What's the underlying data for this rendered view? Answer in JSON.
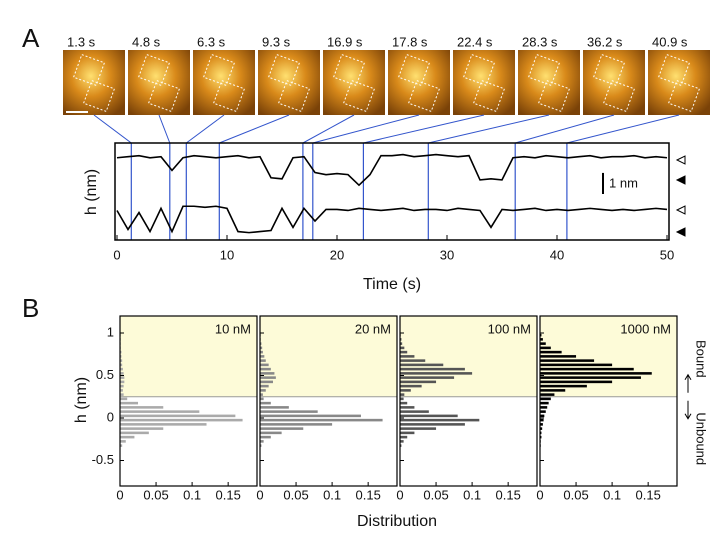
{
  "panels": [
    "A",
    "B"
  ],
  "chart_data": [
    {
      "type": "line",
      "ylabel": "h (nm)",
      "xlabel": "Time (s)",
      "x": [
        0,
        1,
        2,
        3,
        4,
        5,
        6,
        7,
        8,
        9,
        10,
        11,
        12,
        13,
        14,
        15,
        16,
        17,
        18,
        19,
        20,
        21,
        22,
        23,
        24,
        25,
        26,
        27,
        28,
        29,
        30,
        31,
        32,
        33,
        34,
        35,
        36,
        37,
        38,
        39,
        40,
        41,
        42,
        43,
        44,
        45,
        46,
        47,
        48,
        49,
        50
      ],
      "series": [
        {
          "color": "#000000",
          "values": [
            3.9,
            3.95,
            4.0,
            3.9,
            3.95,
            3.3,
            3.9,
            4.0,
            3.95,
            3.9,
            3.95,
            4.0,
            3.9,
            3.95,
            2.95,
            2.9,
            3.9,
            3.95,
            3.2,
            3.1,
            3.15,
            3.1,
            2.6,
            3.1,
            4.0,
            4.0,
            4.05,
            3.95,
            4.0,
            4.05,
            4.0,
            3.95,
            4.0,
            2.85,
            2.9,
            2.85,
            3.9,
            3.95,
            3.9,
            4.0,
            3.95,
            3.9,
            3.95,
            4.0,
            3.9,
            3.95,
            3.95,
            4.0,
            3.9,
            3.95,
            3.9
          ]
        },
        {
          "color": "#000000",
          "values": [
            1.4,
            0.5,
            1.3,
            0.4,
            1.5,
            0.4,
            1.6,
            1.6,
            1.55,
            1.6,
            1.5,
            0.4,
            0.35,
            0.4,
            0.45,
            1.5,
            0.6,
            1.5,
            0.9,
            1.45,
            1.45,
            1.4,
            1.5,
            1.45,
            1.4,
            1.45,
            1.5,
            1.4,
            1.45,
            1.45,
            1.4,
            1.5,
            1.45,
            1.4,
            0.6,
            1.45,
            1.4,
            1.45,
            1.5,
            1.4,
            1.45,
            1.4,
            1.45,
            1.5,
            1.45,
            1.4,
            1.45,
            1.4,
            1.45,
            1.5,
            1.45
          ]
        }
      ],
      "markers": [
        {
          "value": 1.3,
          "label": "1.3 s"
        },
        {
          "value": 4.8,
          "label": "4.8 s"
        },
        {
          "value": 6.3,
          "label": "6.3 s"
        },
        {
          "value": 9.3,
          "label": "9.3 s"
        },
        {
          "value": 16.9,
          "label": "16.9 s"
        },
        {
          "value": 17.8,
          "label": "17.8 s"
        },
        {
          "value": 22.4,
          "label": "22.4 s"
        },
        {
          "value": 28.3,
          "label": "28.3 s"
        },
        {
          "value": 36.2,
          "label": "36.2 s"
        },
        {
          "value": 40.9,
          "label": "40.9 s"
        }
      ],
      "marker_color": "#3355cc",
      "scale_bar": {
        "value": 1,
        "label": "1 nm"
      },
      "xlim": [
        0,
        50
      ],
      "xticks": [
        0,
        10,
        20,
        30,
        40,
        50
      ],
      "ylim": [
        0,
        4.6
      ]
    },
    {
      "type": "histogram",
      "title": "10 nM",
      "color": "#aaaaaa",
      "ylabel": "h (nm)",
      "bins": [
        -0.35,
        -0.3,
        -0.25,
        -0.2,
        -0.15,
        -0.1,
        -0.05,
        0,
        0.05,
        0.1,
        0.15,
        0.2,
        0.25,
        0.3,
        0.35,
        0.4,
        0.45,
        0.5,
        0.55,
        0.6,
        0.65,
        0.7,
        0.75,
        0.8,
        0.85,
        0.9,
        0.95,
        1.0
      ],
      "values": [
        0.003,
        0.008,
        0.02,
        0.04,
        0.06,
        0.12,
        0.17,
        0.16,
        0.11,
        0.06,
        0.025,
        0.01,
        0.005,
        0.004,
        0.005,
        0.006,
        0.006,
        0.005,
        0.004,
        0.003,
        0.003,
        0.002,
        0.002,
        0.001,
        0.001,
        0.001,
        0.001
      ],
      "threshold": 0.25,
      "xlim": [
        0,
        0.19
      ],
      "xticks": [
        0,
        0.05,
        0.1,
        0.15
      ],
      "ylim": [
        -0.8,
        1.2
      ],
      "yticks": [
        -0.5,
        0,
        0.5,
        1
      ]
    },
    {
      "type": "histogram",
      "title": "20 nM",
      "color": "#888888",
      "bins": [
        -0.35,
        -0.3,
        -0.25,
        -0.2,
        -0.15,
        -0.1,
        -0.05,
        0,
        0.05,
        0.1,
        0.15,
        0.2,
        0.25,
        0.3,
        0.35,
        0.4,
        0.45,
        0.5,
        0.55,
        0.6,
        0.65,
        0.7,
        0.75,
        0.8,
        0.85,
        0.9,
        0.95,
        1.0
      ],
      "values": [
        0.002,
        0.005,
        0.015,
        0.03,
        0.06,
        0.1,
        0.17,
        0.14,
        0.08,
        0.04,
        0.015,
        0.005,
        0.004,
        0.008,
        0.012,
        0.018,
        0.022,
        0.02,
        0.015,
        0.012,
        0.008,
        0.006,
        0.004,
        0.003,
        0.002,
        0.001,
        0.001
      ],
      "threshold": 0.25,
      "xlim": [
        0,
        0.19
      ],
      "xticks": [
        0,
        0.05,
        0.1,
        0.15
      ],
      "ylim": [
        -0.8,
        1.2
      ],
      "yticks": [
        -0.5,
        0,
        0.5,
        1
      ]
    },
    {
      "type": "histogram",
      "title": "100 nM",
      "color": "#555555",
      "bins": [
        -0.35,
        -0.3,
        -0.25,
        -0.2,
        -0.15,
        -0.1,
        -0.05,
        0,
        0.05,
        0.1,
        0.15,
        0.2,
        0.25,
        0.3,
        0.35,
        0.4,
        0.45,
        0.5,
        0.55,
        0.6,
        0.65,
        0.7,
        0.75,
        0.8,
        0.85,
        0.9,
        0.95,
        1.0
      ],
      "values": [
        0.002,
        0.005,
        0.01,
        0.02,
        0.05,
        0.09,
        0.11,
        0.08,
        0.04,
        0.02,
        0.01,
        0.005,
        0.006,
        0.015,
        0.03,
        0.05,
        0.075,
        0.1,
        0.09,
        0.06,
        0.035,
        0.02,
        0.01,
        0.006,
        0.003,
        0.002,
        0.001
      ],
      "threshold": 0.25,
      "xlim": [
        0,
        0.19
      ],
      "xticks": [
        0,
        0.05,
        0.1,
        0.15
      ],
      "ylim": [
        -0.8,
        1.2
      ],
      "yticks": [
        -0.5,
        0,
        0.5,
        1
      ]
    },
    {
      "type": "histogram",
      "title": "1000 nM",
      "color": "#000000",
      "bins": [
        -0.35,
        -0.3,
        -0.25,
        -0.2,
        -0.15,
        -0.1,
        -0.05,
        0,
        0.05,
        0.1,
        0.15,
        0.2,
        0.25,
        0.3,
        0.35,
        0.4,
        0.45,
        0.5,
        0.55,
        0.6,
        0.65,
        0.7,
        0.75,
        0.8,
        0.85,
        0.9,
        0.95,
        1.0
      ],
      "values": [
        0.001,
        0.001,
        0.002,
        0.002,
        0.003,
        0.004,
        0.005,
        0.006,
        0.008,
        0.01,
        0.012,
        0.015,
        0.02,
        0.035,
        0.065,
        0.1,
        0.14,
        0.155,
        0.13,
        0.1,
        0.075,
        0.05,
        0.03,
        0.015,
        0.008,
        0.004,
        0.002
      ],
      "threshold": 0.25,
      "xlim": [
        0,
        0.19
      ],
      "xticks": [
        0,
        0.05,
        0.1,
        0.15
      ],
      "ylim": [
        -0.8,
        1.2
      ],
      "yticks": [
        -0.5,
        0,
        0.5,
        1
      ],
      "annotations": [
        "Bound",
        "Unbound"
      ]
    }
  ],
  "hist_xlabel": "Distribution"
}
